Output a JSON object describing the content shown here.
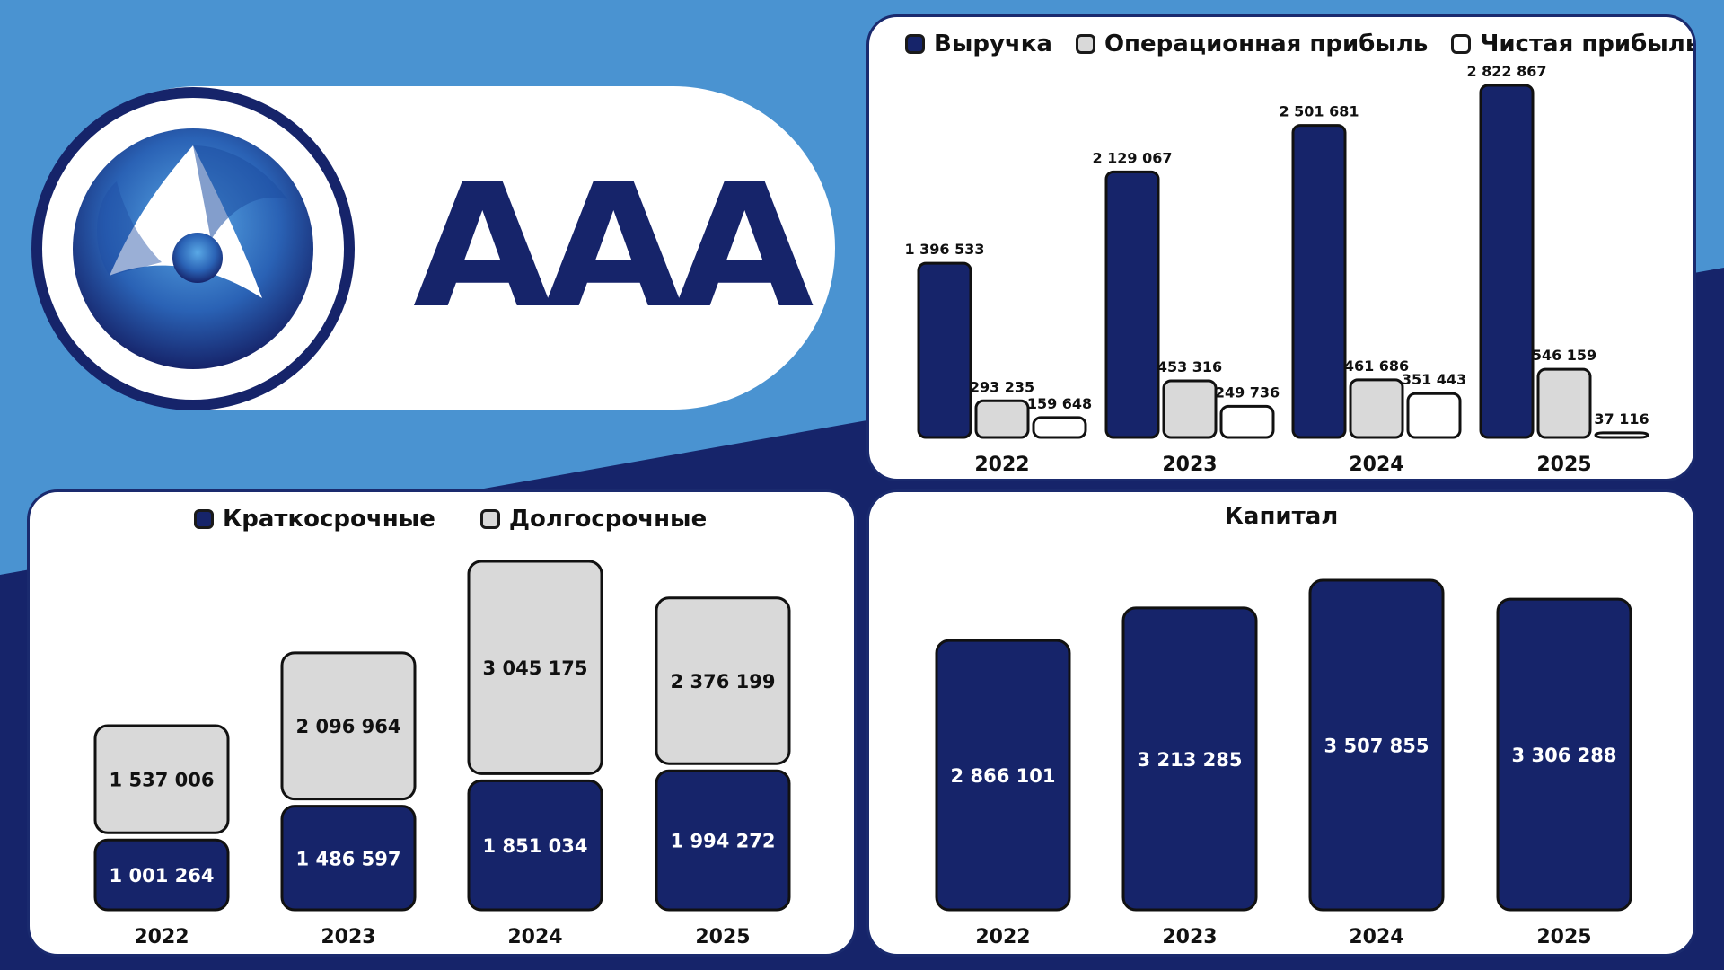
{
  "header": {
    "rating": "AAA",
    "logo": "rosatom-logo"
  },
  "colors": {
    "navy": "#16246a",
    "light_blue": "#4a93d1",
    "gray": "#d9d9d9",
    "white": "#ffffff"
  },
  "chart_data": [
    {
      "id": "income",
      "type": "bar",
      "categories": [
        "2022",
        "2023",
        "2024",
        "2025"
      ],
      "series": [
        {
          "name": "Выручка",
          "color": "#16246a",
          "values": [
            1396533,
            2129067,
            2501681,
            2822867
          ],
          "labels": [
            "1 396 533",
            "2 129 067",
            "2 501 681",
            "2 822 867"
          ]
        },
        {
          "name": "Операционная прибыль",
          "color": "#d9d9d9",
          "values": [
            293235,
            453316,
            461686,
            546159
          ],
          "labels": [
            "293 235",
            "453 316",
            "461 686",
            "546 159"
          ]
        },
        {
          "name": "Чистая прибыль",
          "color": "#ffffff",
          "values": [
            159648,
            249736,
            351443,
            37116
          ],
          "labels": [
            "159 648",
            "249 736",
            "351 443",
            "37 116"
          ]
        }
      ],
      "legend": "top",
      "grid": false
    },
    {
      "id": "debt",
      "type": "bar",
      "stacked": true,
      "categories": [
        "2022",
        "2023",
        "2024",
        "2025"
      ],
      "series": [
        {
          "name": "Краткосрочные",
          "color": "#16246a",
          "values": [
            1001264,
            1486597,
            1851034,
            1994272
          ],
          "labels": [
            "1 001 264",
            "1 486 597",
            "1 851 034",
            "1 994 272"
          ]
        },
        {
          "name": "Долгосрочные",
          "color": "#d9d9d9",
          "values": [
            1537006,
            2096964,
            3045175,
            2376199
          ],
          "labels": [
            "1 537 006",
            "2 096 964",
            "3 045 175",
            "2 376 199"
          ]
        }
      ],
      "legend": "top",
      "grid": false
    },
    {
      "id": "capital",
      "type": "bar",
      "title": "Капитал",
      "categories": [
        "2022",
        "2023",
        "2024",
        "2025"
      ],
      "values": [
        2866101,
        3213285,
        3507855,
        3306288
      ],
      "labels": [
        "2 866 101",
        "3 213 285",
        "3 507 855",
        "3 306 288"
      ],
      "color": "#16246a",
      "grid": false
    }
  ]
}
